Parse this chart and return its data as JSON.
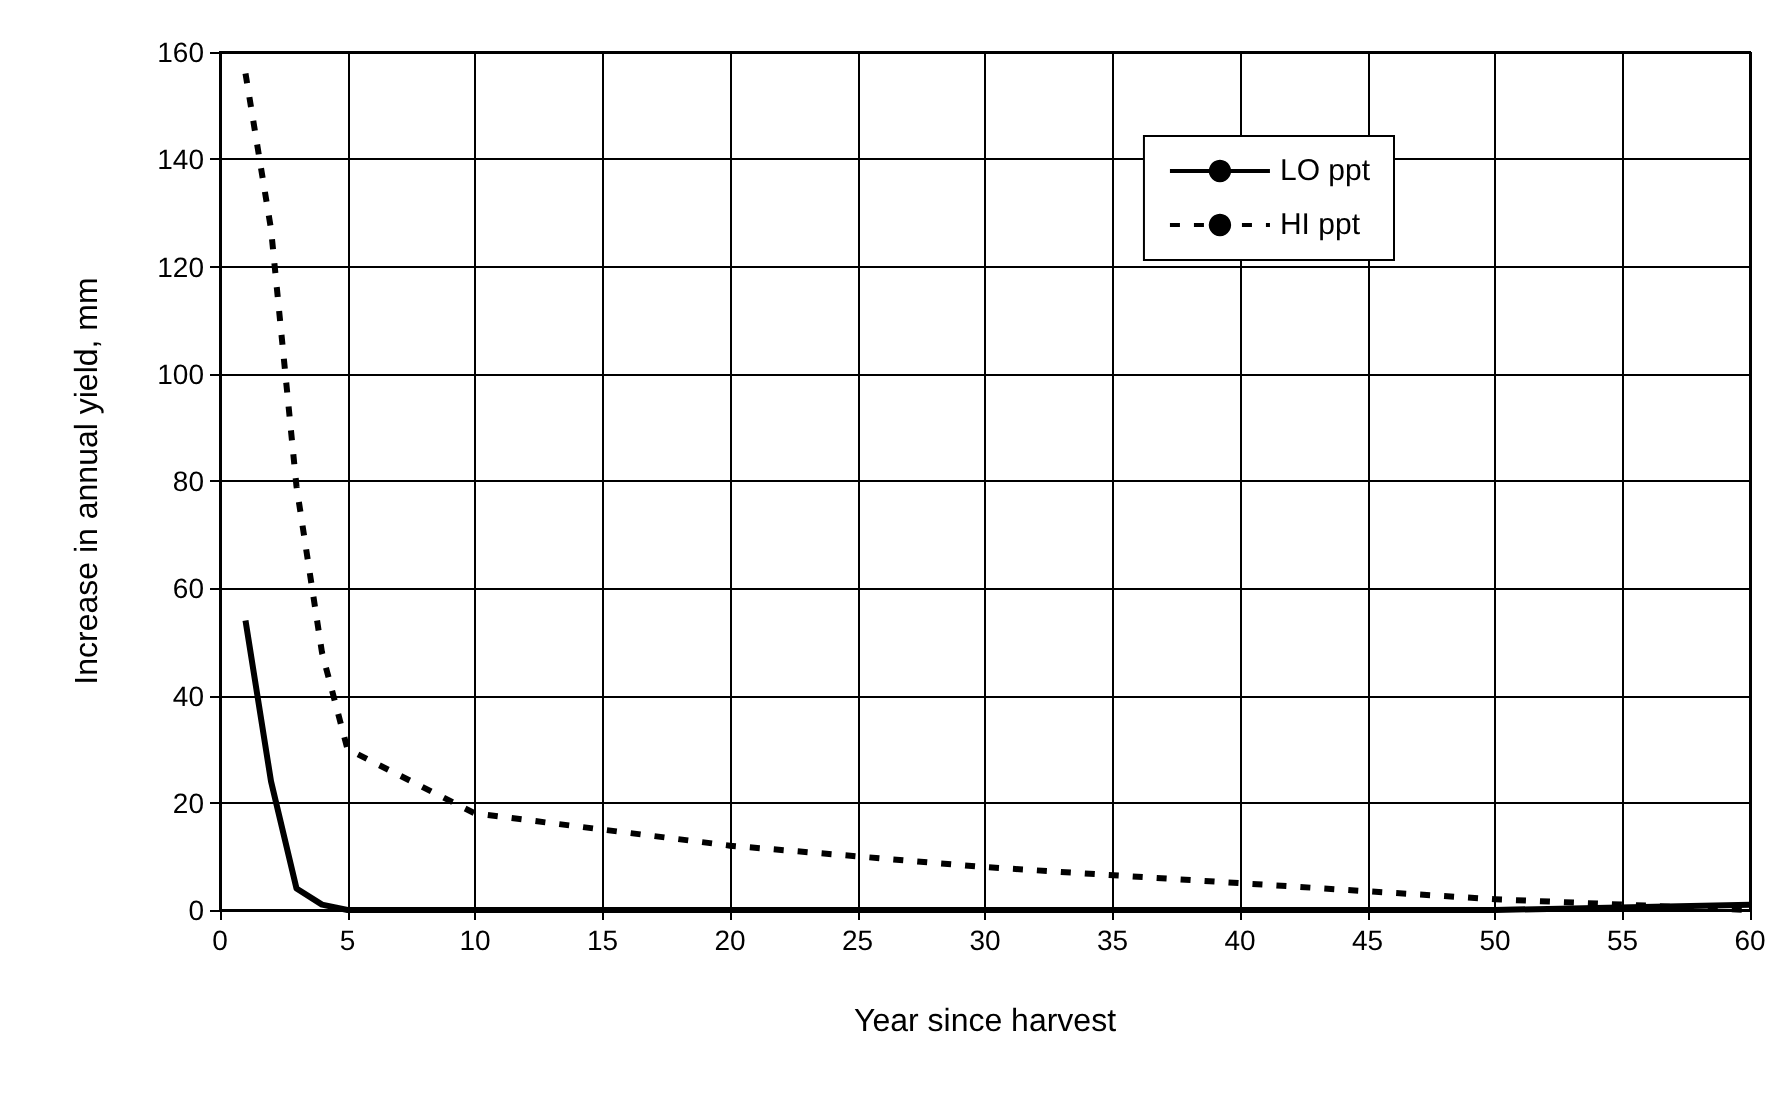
{
  "chart_data": {
    "type": "line",
    "xlabel": "Year since harvest",
    "ylabel": "Increase in annual yield, mm",
    "xlim": [
      0,
      60
    ],
    "xticks": [
      0,
      5,
      10,
      15,
      20,
      25,
      30,
      35,
      40,
      45,
      50,
      55,
      60
    ],
    "ylim": [
      0,
      160
    ],
    "yticks": [
      0,
      20,
      40,
      60,
      80,
      100,
      120,
      140,
      160
    ],
    "grid": true,
    "legend": "top right",
    "marker": "none",
    "series": [
      {
        "name": "LO ppt",
        "color": "#000000",
        "line_style": "solid",
        "x": [
          1,
          2,
          3,
          4,
          5,
          10,
          20,
          30,
          40,
          50,
          60
        ],
        "values": [
          54,
          24,
          4,
          1,
          0,
          0,
          0,
          0,
          0,
          0,
          1
        ]
      },
      {
        "name": "HI ppt",
        "color": "#000000",
        "line_style": "dashed",
        "x": [
          1,
          2,
          3,
          4,
          5,
          10,
          20,
          30,
          40,
          50,
          60
        ],
        "values": [
          156,
          127,
          79,
          48,
          30,
          18,
          12,
          8,
          5,
          2,
          0
        ]
      }
    ]
  }
}
